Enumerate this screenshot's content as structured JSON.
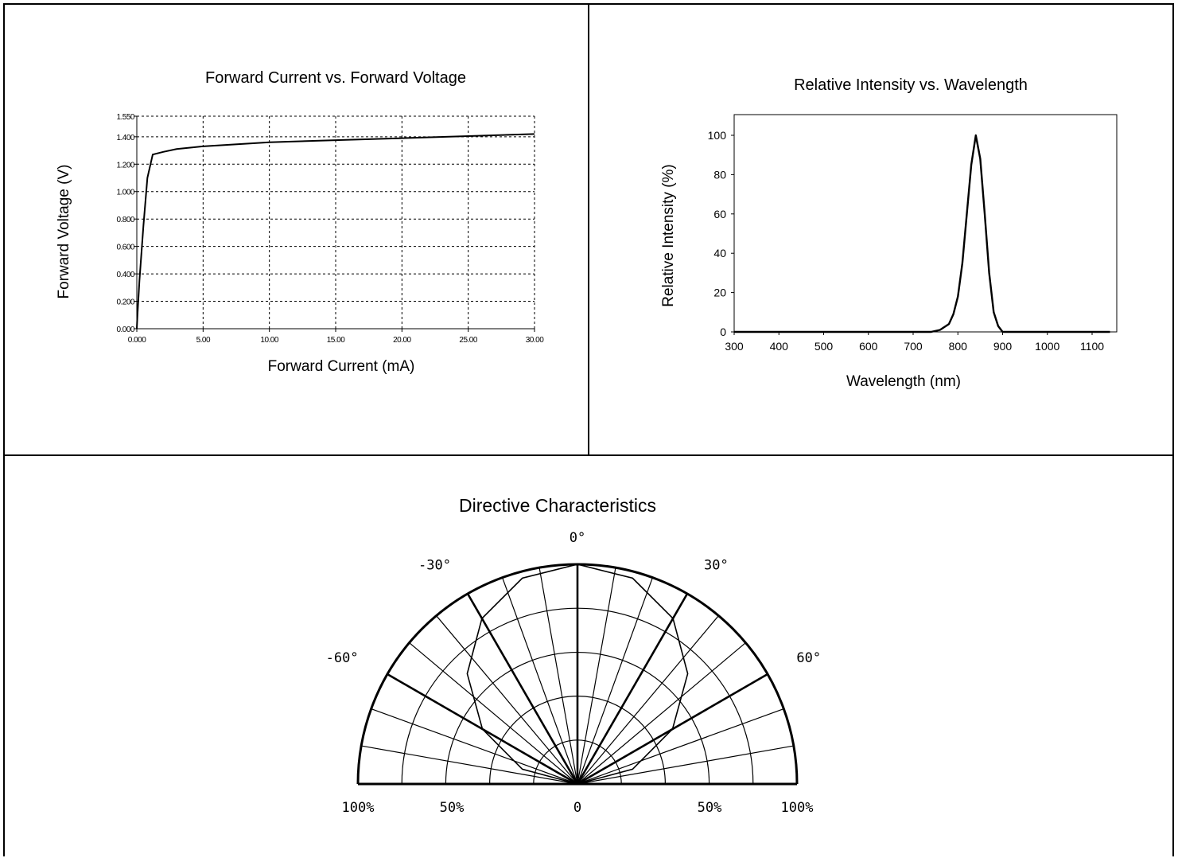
{
  "chart_data": [
    {
      "type": "line",
      "title": "Forward Current vs. Forward Voltage",
      "xlabel": "Forward Current (mA)",
      "ylabel": "Forward Voltage (V)",
      "xlim": [
        0,
        30
      ],
      "ylim": [
        0,
        1.55
      ],
      "x_ticks": [
        "0.000",
        "5.00",
        "10.00",
        "15.00",
        "20.00",
        "25.00",
        "30.00"
      ],
      "y_ticks": [
        "0.000",
        "0.200",
        "0.400",
        "0.600",
        "0.800",
        "1.000",
        "1.200",
        "1.400",
        "1.550"
      ],
      "grid": true,
      "series": [
        {
          "x": [
            0,
            0.05,
            0.2,
            0.5,
            0.8,
            1.2,
            2,
            3,
            5,
            10,
            15,
            20,
            25,
            30
          ],
          "y": [
            0.0,
            0.1,
            0.35,
            0.75,
            1.1,
            1.27,
            1.29,
            1.31,
            1.33,
            1.36,
            1.375,
            1.39,
            1.405,
            1.42
          ]
        }
      ]
    },
    {
      "type": "line",
      "title": "Relative Intensity vs. Wavelength",
      "xlabel": "Wavelength (nm)",
      "ylabel": "Relative Intensity (%)",
      "xlim": [
        300,
        1150
      ],
      "ylim": [
        0,
        110
      ],
      "x_ticks": [
        "300",
        "400",
        "500",
        "600",
        "700",
        "800",
        "900",
        "1000",
        "1100"
      ],
      "y_ticks": [
        "0",
        "20",
        "40",
        "60",
        "80",
        "100"
      ],
      "grid": false,
      "series": [
        {
          "x": [
            300,
            740,
            760,
            780,
            790,
            800,
            810,
            820,
            830,
            840,
            850,
            860,
            870,
            880,
            890,
            900,
            1140
          ],
          "y": [
            0,
            0,
            1,
            4,
            9,
            18,
            35,
            60,
            85,
            100,
            88,
            60,
            30,
            10,
            3,
            0,
            0
          ]
        }
      ]
    },
    {
      "type": "polar",
      "title": "Directive Characteristics",
      "angle_labels": [
        "0°",
        "30°",
        "60°",
        "-30°",
        "-60°"
      ],
      "radial_labels": [
        "100%",
        "50%",
        "0",
        "50%",
        "100%"
      ],
      "series": [
        {
          "angle_deg": [
            -90,
            -75,
            -60,
            -45,
            -30,
            -15,
            0,
            15,
            30,
            45,
            60,
            75,
            90
          ],
          "relative_intensity": [
            0,
            0.26,
            0.5,
            0.71,
            0.87,
            0.97,
            1.0,
            0.97,
            0.87,
            0.71,
            0.5,
            0.26,
            0
          ]
        }
      ]
    }
  ]
}
